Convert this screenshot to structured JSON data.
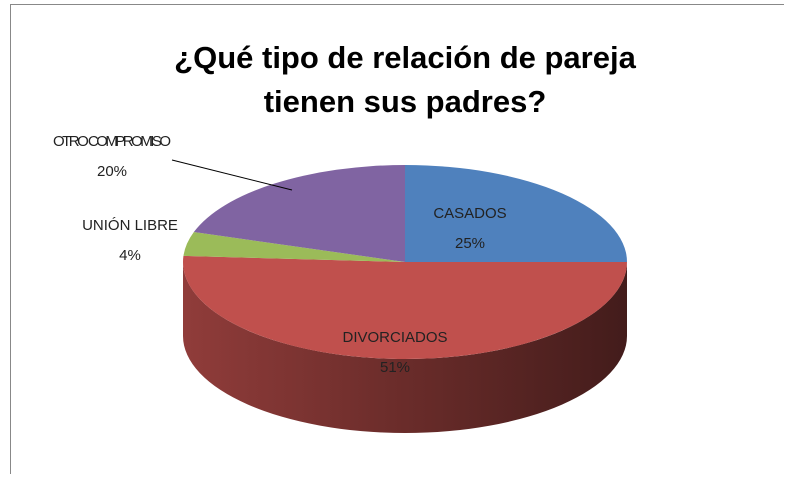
{
  "chart_data": {
    "type": "pie",
    "title": "¿Qué tipo de relación de pareja tienen sus padres?",
    "categories": [
      "CASADOS",
      "DIVORCIADOS",
      "UNIÓN LIBRE",
      "OTRO COMPROMISO"
    ],
    "values": [
      25,
      51,
      4,
      20
    ],
    "value_labels": [
      "25%",
      "51%",
      "4%",
      "20%"
    ],
    "colors": [
      "#4f81bd",
      "#c0504d",
      "#9bbb59",
      "#8064a2"
    ]
  }
}
